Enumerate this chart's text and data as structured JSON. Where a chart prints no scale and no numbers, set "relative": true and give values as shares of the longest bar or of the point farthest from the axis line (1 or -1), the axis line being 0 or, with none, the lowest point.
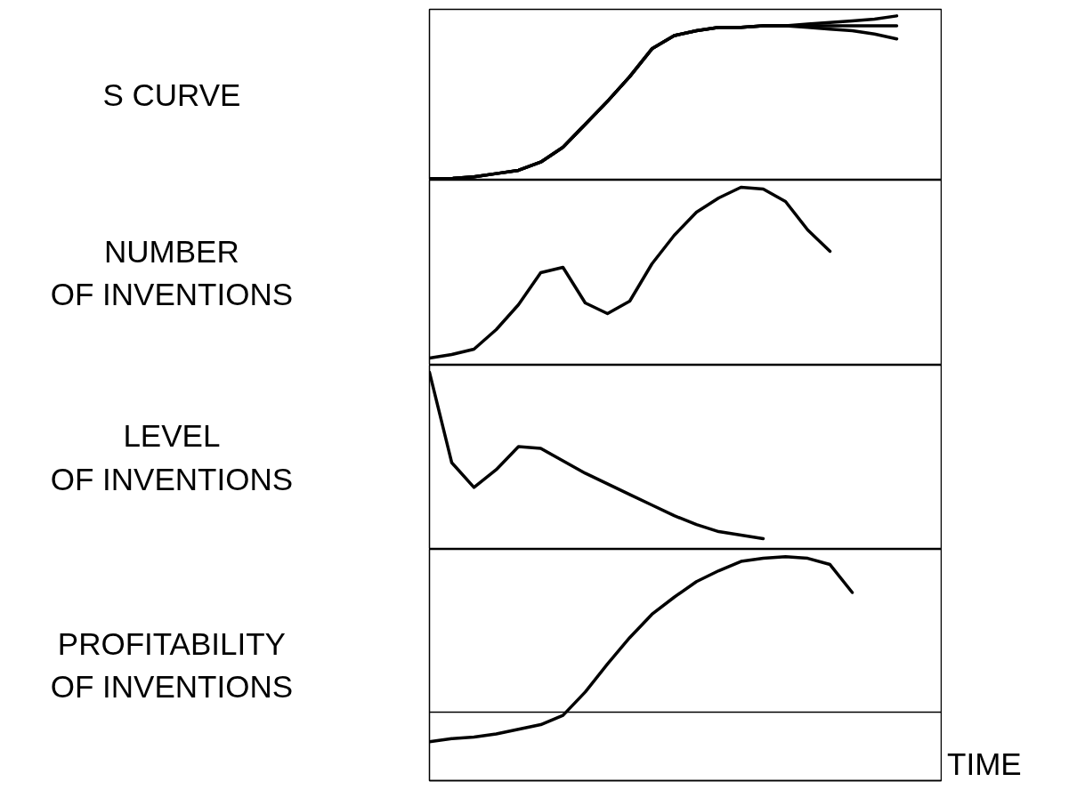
{
  "chart_data": [
    {
      "type": "line",
      "relative": true,
      "tick_labels": false,
      "ylabel": "S CURVE",
      "categories": [
        null,
        null,
        null,
        null,
        null,
        null,
        null,
        null,
        null,
        null,
        null,
        null,
        null,
        null,
        null,
        null,
        null,
        null,
        null,
        null,
        null,
        null
      ],
      "series": [
        {
          "color": "#000000",
          "values": [
            0.01,
            0.01,
            0.02,
            0.04,
            0.06,
            0.11,
            0.2,
            0.34,
            0.48,
            0.63,
            0.8,
            0.88,
            0.91,
            0.93,
            0.93,
            0.94,
            0.94,
            0.95,
            0.96,
            0.97,
            0.98,
            1.0
          ]
        },
        {
          "color": "#000000",
          "values": [
            0.01,
            0.01,
            0.02,
            0.04,
            0.06,
            0.11,
            0.2,
            0.34,
            0.48,
            0.63,
            0.8,
            0.88,
            0.91,
            0.93,
            0.93,
            0.94,
            0.94,
            0.94,
            0.94,
            0.94,
            0.94,
            0.94
          ]
        },
        {
          "color": "#000000",
          "values": [
            0.01,
            0.01,
            0.02,
            0.04,
            0.06,
            0.11,
            0.2,
            0.34,
            0.48,
            0.63,
            0.8,
            0.88,
            0.91,
            0.93,
            0.93,
            0.94,
            0.94,
            0.93,
            0.92,
            0.91,
            0.89,
            0.86
          ]
        }
      ]
    },
    {
      "type": "line",
      "relative": true,
      "tick_labels": false,
      "ylabel": "NUMBER\nOF INVENTIONS",
      "categories": [
        null,
        null,
        null,
        null,
        null,
        null,
        null,
        null,
        null,
        null,
        null,
        null,
        null,
        null,
        null,
        null,
        null,
        null,
        null
      ],
      "series": [
        {
          "color": "#000000",
          "values": [
            0.04,
            0.06,
            0.09,
            0.2,
            0.34,
            0.52,
            0.55,
            0.35,
            0.29,
            0.36,
            0.57,
            0.73,
            0.86,
            0.94,
            1.0,
            0.99,
            0.92,
            0.76,
            0.64
          ]
        }
      ]
    },
    {
      "type": "line",
      "relative": true,
      "tick_labels": false,
      "ylabel": "LEVEL\nOF INVENTIONS",
      "categories": [
        null,
        null,
        null,
        null,
        null,
        null,
        null,
        null,
        null,
        null,
        null,
        null,
        null,
        null,
        null,
        null
      ],
      "series": [
        {
          "color": "#000000",
          "values": [
            1.0,
            0.49,
            0.35,
            0.45,
            0.58,
            0.57,
            0.5,
            0.43,
            0.37,
            0.31,
            0.25,
            0.19,
            0.14,
            0.1,
            0.08,
            0.06
          ]
        }
      ]
    },
    {
      "type": "line",
      "relative": true,
      "tick_labels": false,
      "ylabel": "PROFITABILITY\nOF INVENTIONS",
      "xlabel": "TIME",
      "categories": [
        null,
        null,
        null,
        null,
        null,
        null,
        null,
        null,
        null,
        null,
        null,
        null,
        null,
        null,
        null,
        null,
        null,
        null,
        null,
        null
      ],
      "ref_lines": [
        {
          "axis": "y",
          "value": 0
        }
      ],
      "series": [
        {
          "color": "#000000",
          "values": [
            -0.19,
            -0.17,
            -0.16,
            -0.14,
            -0.11,
            -0.08,
            -0.02,
            0.13,
            0.31,
            0.48,
            0.63,
            0.74,
            0.84,
            0.91,
            0.97,
            0.99,
            1.0,
            0.99,
            0.95,
            0.77
          ]
        }
      ]
    }
  ]
}
